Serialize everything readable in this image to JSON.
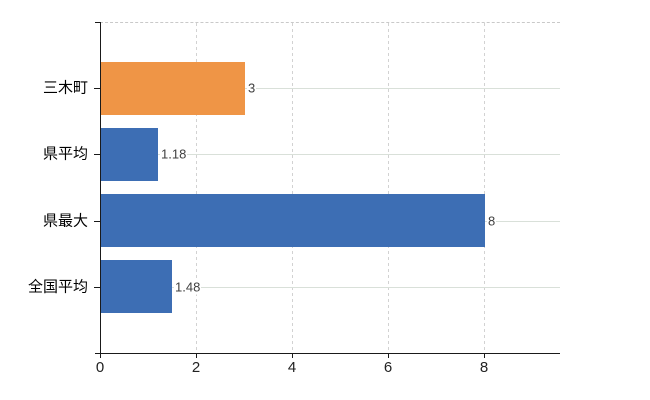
{
  "chart_data": {
    "type": "bar",
    "orientation": "horizontal",
    "title": "",
    "xlabel": "",
    "ylabel": "",
    "categories": [
      "三木町",
      "県平均",
      "県最大",
      "全国平均"
    ],
    "values": [
      3,
      1.18,
      8,
      1.48
    ],
    "value_labels": [
      "3",
      "1.18",
      "8",
      "1.48"
    ],
    "bar_colors": [
      "#EF9546",
      "#3D6EB4",
      "#3D6EB4",
      "#3D6EB4"
    ],
    "x_ticks": [
      0,
      2,
      4,
      6,
      8
    ],
    "x_tick_labels": [
      "0",
      "2",
      "4",
      "6",
      "8"
    ],
    "xlim": [
      0,
      9.58
    ],
    "grid": "vertical dashed lines at x ticks; horizontal solid lines at category centers; dashed top border",
    "legend": "none"
  },
  "colors": {
    "highlight_bar": "#EF9546",
    "default_bar": "#3D6EB4",
    "axis": "#1a1a1a",
    "vertical_gridline": "#d2d2d2",
    "horizontal_gridline": "#d9e0d9",
    "plot_top_border": "#c9c9c9",
    "value_label_text": "#404040",
    "axis_tick_text": "#222222",
    "category_text": "#000000",
    "background": "#ffffff"
  }
}
